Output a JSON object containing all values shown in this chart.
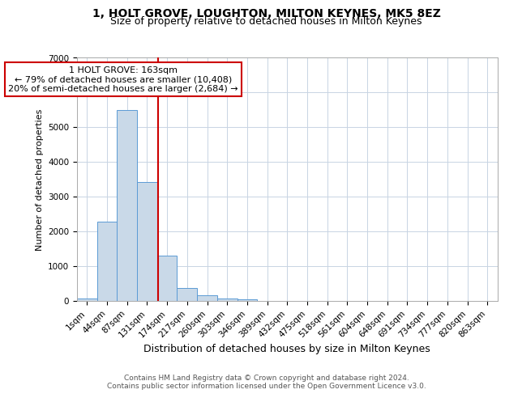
{
  "title": "1, HOLT GROVE, LOUGHTON, MILTON KEYNES, MK5 8EZ",
  "subtitle": "Size of property relative to detached houses in Milton Keynes",
  "xlabel": "Distribution of detached houses by size in Milton Keynes",
  "ylabel": "Number of detached properties",
  "categories": [
    "1sqm",
    "44sqm",
    "87sqm",
    "131sqm",
    "174sqm",
    "217sqm",
    "260sqm",
    "303sqm",
    "346sqm",
    "389sqm",
    "432sqm",
    "475sqm",
    "518sqm",
    "561sqm",
    "604sqm",
    "648sqm",
    "691sqm",
    "734sqm",
    "777sqm",
    "820sqm",
    "863sqm"
  ],
  "values": [
    60,
    2270,
    5490,
    3420,
    1310,
    370,
    155,
    75,
    50,
    0,
    0,
    0,
    0,
    0,
    0,
    0,
    0,
    0,
    0,
    0,
    0
  ],
  "bar_color": "#c9d9e8",
  "bar_edge_color": "#5b9bd5",
  "vline_x_index": 3.55,
  "vline_color": "#cc0000",
  "annotation_text": "1 HOLT GROVE: 163sqm\n← 79% of detached houses are smaller (10,408)\n20% of semi-detached houses are larger (2,684) →",
  "annotation_box_color": "#ffffff",
  "annotation_box_edge_color": "#cc0000",
  "ylim": [
    0,
    7000
  ],
  "yticks": [
    0,
    1000,
    2000,
    3000,
    4000,
    5000,
    6000,
    7000
  ],
  "title_fontsize": 10,
  "subtitle_fontsize": 9,
  "xlabel_fontsize": 9,
  "ylabel_fontsize": 8,
  "tick_fontsize": 7.5,
  "annotation_fontsize": 8,
  "footer_text": "Contains HM Land Registry data © Crown copyright and database right 2024.\nContains public sector information licensed under the Open Government Licence v3.0.",
  "footer_fontsize": 6.5,
  "background_color": "#ffffff",
  "grid_color": "#c8d4e3"
}
